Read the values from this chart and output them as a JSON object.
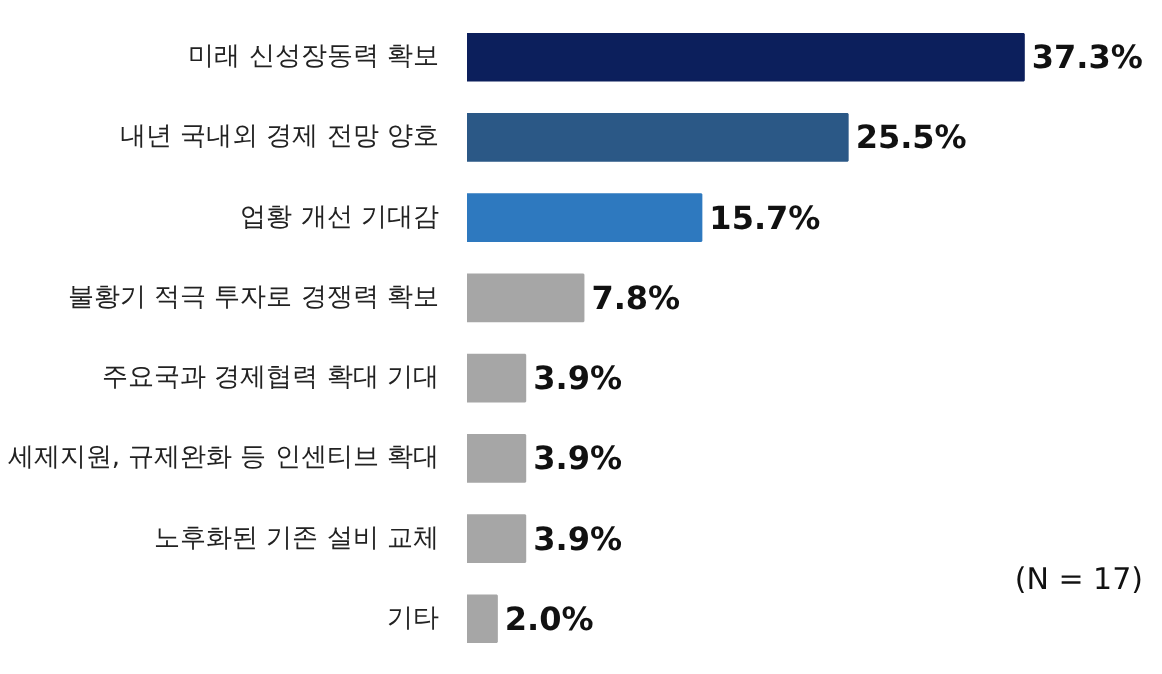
{
  "chart_data": {
    "type": "bar",
    "orientation": "horizontal",
    "categories": [
      "미래 신성장동력 확보",
      "내년 국내외 경제 전망 양호",
      "업황 개선 기대감",
      "불황기 적극 투자로 경쟁력 확보",
      "주요국과 경제협력 확대 기대",
      "세제지원, 규제완화 등 인센티브 확대",
      "노후화된 기존 설비 교체",
      "기타"
    ],
    "values": [
      37.3,
      25.5,
      15.7,
      7.8,
      3.9,
      3.9,
      3.9,
      2.0
    ],
    "colors": [
      "#0c1f5c",
      "#2b5886",
      "#2e79bf",
      "#a6a6a6",
      "#a6a6a6",
      "#a6a6a6",
      "#a6a6a6",
      "#a6a6a6"
    ],
    "value_labels": [
      "37.3%",
      "25.5%",
      "15.7%",
      "7.8%",
      "3.9%",
      "3.9%",
      "3.9%",
      "2.0%"
    ],
    "annotations": [
      "(N = 17)"
    ],
    "grid": false
  }
}
